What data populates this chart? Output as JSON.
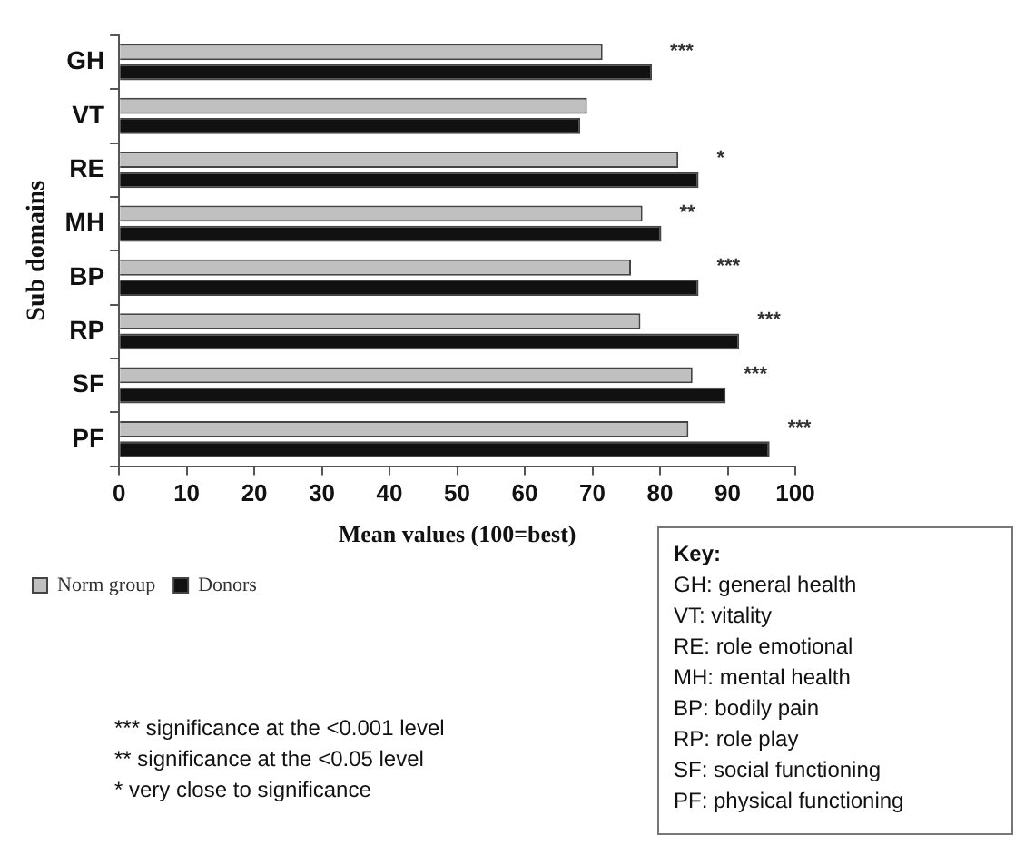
{
  "chart_data": {
    "type": "bar",
    "orientation": "horizontal",
    "ylabel": "Sub domains",
    "xlabel": "Mean values (100=best)",
    "categories": [
      "GH",
      "VT",
      "RE",
      "MH",
      "BP",
      "RP",
      "SF",
      "PF"
    ],
    "series": [
      {
        "name": "Norm group",
        "color": "#c0c0c0",
        "values": [
          71.5,
          69.2,
          82.7,
          77.4,
          75.7,
          77.1,
          84.8,
          84.2
        ]
      },
      {
        "name": "Donors",
        "color": "#111111",
        "values": [
          78.8,
          68.2,
          85.7,
          80.2,
          85.7,
          91.7,
          89.7,
          96.2
        ]
      }
    ],
    "xlim": [
      0,
      100
    ],
    "xticks": [
      0,
      10,
      20,
      30,
      40,
      50,
      60,
      70,
      80,
      90,
      100
    ],
    "grid": false,
    "legend": "bottom left",
    "annotations": [
      {
        "text": "***",
        "x": 78.8,
        "y": "GH"
      },
      {
        "text": "*",
        "x": 85.7,
        "y": "RE"
      },
      {
        "text": "**",
        "x": 80.2,
        "y": "MH"
      },
      {
        "text": "***",
        "x": 85.7,
        "y": "BP"
      },
      {
        "text": "***",
        "x": 91.7,
        "y": "RP"
      },
      {
        "text": "***",
        "x": 89.7,
        "y": "SF"
      },
      {
        "text": "***",
        "x": 96.2,
        "y": "PF"
      },
      "*** significance at the <0.001 level",
      "** significance at the <0.05 level",
      "* very close to significance",
      "Key:",
      "GH: general health",
      "VT: vitality",
      "RE: role emotional",
      "MH: mental health",
      "BP: bodily pain",
      "RP: role play",
      "SF: social functioning",
      "PF: physical functioning"
    ]
  }
}
